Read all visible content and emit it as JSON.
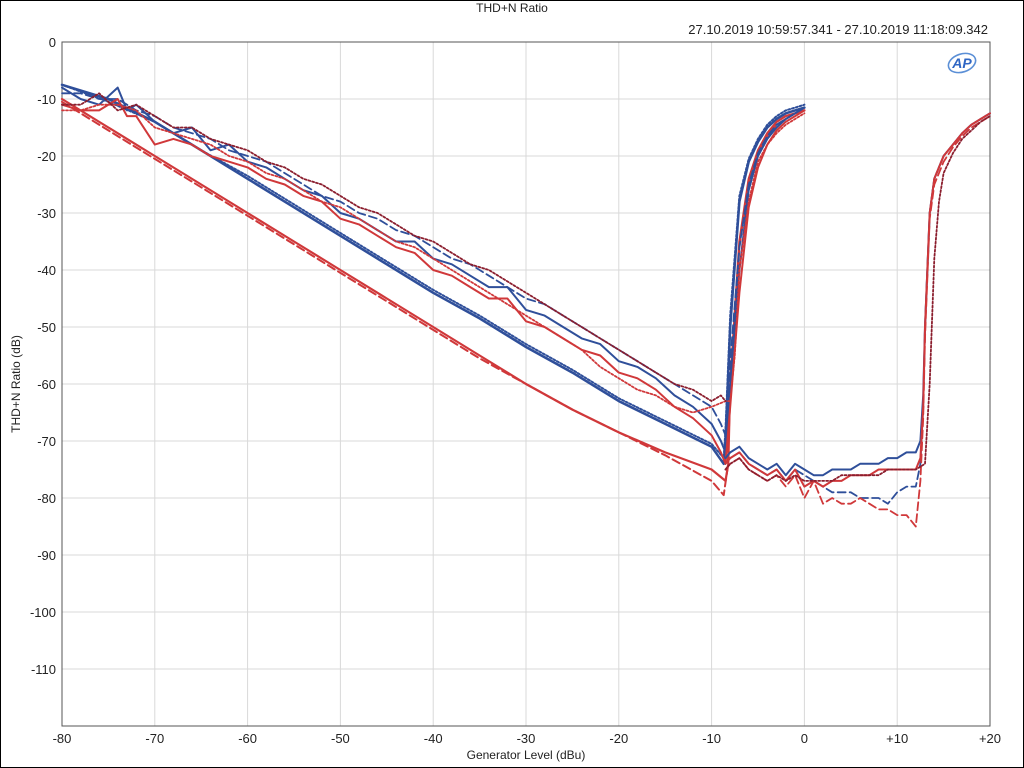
{
  "chart_data": {
    "type": "line",
    "title": "THD+N Ratio",
    "subtitle": "27.10.2019 10:59:57.341 - 27.10.2019 11:18:09.342",
    "xlabel": "Generator Level (dBu)",
    "ylabel": "THD+N Ratio (dB)",
    "xlim": [
      -80,
      20
    ],
    "ylim": [
      -120,
      0
    ],
    "xticks": [
      -80,
      -70,
      -60,
      -50,
      -40,
      -30,
      -20,
      -10,
      0,
      10,
      20
    ],
    "xtick_labels": [
      "-80",
      "-70",
      "-60",
      "-50",
      "-40",
      "-30",
      "-20",
      "-10",
      "0",
      "+10",
      "+20"
    ],
    "yticks": [
      0,
      -10,
      -20,
      -30,
      -40,
      -50,
      -60,
      -70,
      -80,
      -90,
      -100,
      -110
    ],
    "ytick_labels": [
      "0",
      "-10",
      "-20",
      "-30",
      "-40",
      "-50",
      "-60",
      "-70",
      "-80",
      "-90",
      "-100",
      "-110"
    ],
    "grid": true,
    "logo_text": "AP",
    "colors": {
      "blue": "#2f4f9a",
      "red": "#d0383a",
      "dark_red": "#8b1e2e"
    },
    "series": [
      {
        "color": "#2f4f9a",
        "style": "solid",
        "width": 2.5,
        "x": [
          -80,
          -75,
          -70,
          -65,
          -60,
          -55,
          -50,
          -45,
          -40,
          -35,
          -30,
          -25,
          -20,
          -15,
          -10,
          -8.7,
          -8.5,
          -8,
          -7,
          -6,
          -5,
          -4,
          -3,
          -2,
          -1,
          0
        ],
        "y": [
          -7.5,
          -10,
          -14,
          -19,
          -24,
          -29,
          -34,
          -39,
          -44,
          -48.5,
          -53.5,
          -58,
          -63,
          -67,
          -71,
          -74,
          -70,
          -50,
          -28,
          -21,
          -17.5,
          -15,
          -13.5,
          -12.5,
          -12,
          -11.5
        ]
      },
      {
        "color": "#2f4f9a",
        "style": "dotted",
        "width": 2,
        "x": [
          -80,
          -75,
          -70,
          -65,
          -60,
          -55,
          -50,
          -45,
          -40,
          -35,
          -30,
          -25,
          -20,
          -15,
          -10,
          -8.7,
          -8.5,
          -8,
          -7,
          -6,
          -5,
          -4,
          -3,
          -2,
          -1,
          0
        ],
        "y": [
          -7.5,
          -10.5,
          -14,
          -19,
          -23.5,
          -28.5,
          -33.5,
          -38.5,
          -43.5,
          -48,
          -53,
          -57.5,
          -62.5,
          -66.5,
          -70.5,
          -73,
          -68,
          -48,
          -27,
          -20.5,
          -17,
          -14.5,
          -13,
          -12,
          -11.5,
          -11
        ]
      },
      {
        "color": "#d0383a",
        "style": "solid",
        "width": 2.2,
        "x": [
          -80,
          -75,
          -70,
          -65,
          -60,
          -55,
          -50,
          -45,
          -40,
          -35,
          -30,
          -25,
          -20,
          -15,
          -10,
          -8.5,
          -8.2,
          -8,
          -7,
          -6,
          -5,
          -4,
          -3,
          -2,
          -1,
          0
        ],
        "y": [
          -10,
          -15,
          -20,
          -25,
          -30,
          -35,
          -40,
          -45,
          -50,
          -55,
          -60,
          -64.5,
          -68.5,
          -72,
          -75,
          -77,
          -74,
          -60,
          -35,
          -24,
          -19,
          -16,
          -14,
          -13,
          -12.5,
          -12
        ]
      },
      {
        "color": "#d0383a",
        "style": "dashed",
        "width": 2,
        "x": [
          -80,
          -75,
          -70,
          -65,
          -60,
          -55,
          -50,
          -45,
          -40,
          -35,
          -30,
          -25,
          -20,
          -15,
          -10,
          -8.7,
          -8.3,
          -8,
          -7,
          -6,
          -5,
          -4,
          -3,
          -2,
          -1,
          0
        ],
        "y": [
          -10.5,
          -15.5,
          -20.5,
          -25.5,
          -30.5,
          -35.5,
          -40.5,
          -45.5,
          -50.5,
          -55.5,
          -60,
          -64.5,
          -68.5,
          -72.5,
          -77,
          -79.5,
          -75,
          -62,
          -36,
          -25,
          -19.5,
          -16.5,
          -14.5,
          -13.5,
          -12.5,
          -12
        ]
      },
      {
        "color": "#2f4f9a",
        "style": "solid",
        "width": 2,
        "x": [
          -80,
          -78,
          -76,
          -74,
          -73,
          -72,
          -70,
          -68,
          -66,
          -64,
          -62,
          -60,
          -58,
          -56,
          -54,
          -52,
          -50,
          -48,
          -46,
          -44,
          -42,
          -40,
          -38,
          -36,
          -34,
          -32,
          -30,
          -28,
          -26,
          -24,
          -22,
          -20,
          -18,
          -16,
          -14,
          -12,
          -10,
          -9,
          -8.5,
          -8,
          -7,
          -6,
          -5,
          -4,
          -3,
          -2,
          -1,
          0
        ],
        "y": [
          -8,
          -10,
          -11,
          -8,
          -12,
          -11,
          -14,
          -16,
          -15,
          -19,
          -18,
          -21,
          -22,
          -24,
          -26,
          -27,
          -30,
          -31,
          -33,
          -35,
          -35,
          -38,
          -39,
          -41,
          -43,
          -43,
          -47,
          -48,
          -50,
          -52,
          -53,
          -56,
          -57,
          -59,
          -62,
          -64,
          -67,
          -70,
          -72,
          -60,
          -40,
          -26,
          -20,
          -17,
          -15,
          -13.5,
          -12.5,
          -11.5
        ]
      },
      {
        "color": "#2f4f9a",
        "style": "dashed",
        "width": 1.8,
        "x": [
          -80,
          -78,
          -76,
          -74,
          -73,
          -72,
          -70,
          -68,
          -66,
          -64,
          -62,
          -60,
          -58,
          -56,
          -54,
          -52,
          -50,
          -48,
          -46,
          -44,
          -42,
          -40,
          -38,
          -36,
          -34,
          -32,
          -30,
          -28,
          -26,
          -24,
          -22,
          -20,
          -18,
          -16,
          -14,
          -12,
          -10,
          -9,
          -8.5,
          -8,
          -7,
          -6,
          -5,
          -4,
          -3,
          -2,
          -1,
          0
        ],
        "y": [
          -9,
          -9,
          -10,
          -10,
          -11,
          -12,
          -13,
          -15,
          -16,
          -17,
          -19,
          -20,
          -21,
          -23,
          -25,
          -27,
          -28,
          -30,
          -31,
          -33,
          -34,
          -36,
          -38,
          -39,
          -41,
          -43,
          -45,
          -46,
          -48,
          -50,
          -52,
          -54,
          -56,
          -58,
          -60,
          -62,
          -64,
          -67,
          -69,
          -56,
          -36,
          -25,
          -19.5,
          -16.5,
          -14.5,
          -13.5,
          -12.5,
          -11.5
        ]
      },
      {
        "color": "#d0383a",
        "style": "solid",
        "width": 2,
        "x": [
          -80,
          -78,
          -76,
          -74,
          -73,
          -72,
          -70,
          -68,
          -66,
          -64,
          -62,
          -60,
          -58,
          -56,
          -54,
          -52,
          -50,
          -48,
          -46,
          -44,
          -42,
          -40,
          -38,
          -36,
          -34,
          -32,
          -30,
          -28,
          -26,
          -24,
          -22,
          -20,
          -18,
          -16,
          -14,
          -12,
          -10,
          -9,
          -8.5,
          -8,
          -7,
          -6,
          -5,
          -4,
          -3,
          -2,
          -1,
          0
        ],
        "y": [
          -11,
          -12,
          -12,
          -10,
          -13,
          -13,
          -18,
          -17,
          -18,
          -20,
          -21,
          -22,
          -24,
          -25,
          -27,
          -28,
          -31,
          -32,
          -34,
          -36,
          -37,
          -40,
          -41,
          -43,
          -45,
          -45,
          -49,
          -50,
          -52,
          -54,
          -55,
          -58,
          -59,
          -61,
          -64,
          -66,
          -69,
          -72,
          -74,
          -64,
          -44,
          -29,
          -22,
          -18,
          -15.5,
          -14,
          -13,
          -12
        ]
      },
      {
        "color": "#d0383a",
        "style": "dotted",
        "width": 1.8,
        "x": [
          -80,
          -78,
          -76,
          -74,
          -72,
          -70,
          -68,
          -66,
          -64,
          -62,
          -60,
          -58,
          -56,
          -54,
          -52,
          -50,
          -48,
          -46,
          -44,
          -42,
          -40,
          -38,
          -36,
          -34,
          -32,
          -30,
          -28,
          -26,
          -24,
          -22,
          -20,
          -18,
          -16,
          -14,
          -12,
          -10,
          -8.5,
          -8,
          -7.5,
          -7,
          -6,
          -5,
          -4,
          -3,
          -2,
          -1,
          0
        ],
        "y": [
          -12,
          -12,
          -11,
          -11,
          -12,
          -15,
          -16,
          -17,
          -18,
          -20,
          -21,
          -23,
          -24,
          -26,
          -28,
          -29,
          -31,
          -33,
          -35,
          -36,
          -38,
          -40,
          -42,
          -44,
          -46,
          -48,
          -50,
          -52,
          -54,
          -57,
          -59,
          -61,
          -62,
          -64,
          -65,
          -64,
          -63,
          -63,
          -55,
          -40,
          -28,
          -21,
          -18,
          -16,
          -14.5,
          -13.5,
          -12.5
        ]
      },
      {
        "color": "#8b1e2e",
        "style": "dotted",
        "width": 1.8,
        "x": [
          -80,
          -78,
          -76,
          -74,
          -72,
          -70,
          -68,
          -66,
          -64,
          -62,
          -60,
          -58,
          -56,
          -54,
          -52,
          -50,
          -48,
          -46,
          -44,
          -42,
          -40,
          -38,
          -36,
          -34,
          -32,
          -30,
          -28,
          -26,
          -24,
          -22,
          -20,
          -18,
          -16,
          -14,
          -12,
          -10,
          -9,
          -8.5
        ],
        "y": [
          -11,
          -11,
          -9,
          -12,
          -11,
          -13,
          -15,
          -15,
          -17,
          -18,
          -19,
          -21,
          -22,
          -24,
          -25,
          -27,
          -29,
          -30,
          -32,
          -34,
          -35,
          -37,
          -39,
          -40,
          -42,
          -44,
          -46,
          -48,
          -50,
          -52,
          -54,
          -56,
          -58,
          -60,
          -61,
          -63,
          -62,
          -63
        ]
      },
      {
        "color": "#2f4f9a",
        "style": "solid",
        "width": 2,
        "x": [
          -8.5,
          -8,
          -7,
          -6,
          -5,
          -4,
          -3,
          -2,
          -1,
          0,
          1,
          2,
          3,
          4,
          5,
          6,
          7,
          8,
          9,
          10,
          11,
          12,
          12.5,
          12.8,
          13,
          13.5,
          14,
          15,
          16,
          17,
          18,
          19,
          20
        ],
        "y": [
          -73,
          -72,
          -71,
          -73,
          -74,
          -75,
          -74,
          -76,
          -74,
          -75,
          -76,
          -76,
          -75,
          -75,
          -75,
          -74,
          -74,
          -74,
          -73,
          -73,
          -72,
          -72,
          -70,
          -62,
          -50,
          -30,
          -24,
          -20,
          -18,
          -16,
          -14.5,
          -13.5,
          -12.5
        ]
      },
      {
        "color": "#2f4f9a",
        "style": "dashed",
        "width": 1.8,
        "x": [
          -8.5,
          -8,
          -7,
          -6,
          -5,
          -4,
          -3,
          -2,
          -1,
          0,
          1,
          2,
          3,
          4,
          5,
          6,
          7,
          8,
          9,
          10,
          11,
          12,
          12.5,
          12.8,
          13,
          13.5,
          14,
          15,
          16,
          17,
          18,
          19,
          20
        ],
        "y": [
          -74,
          -73,
          -72,
          -74,
          -75,
          -76,
          -75,
          -77,
          -75,
          -76,
          -77,
          -78,
          -79,
          -79,
          -79,
          -80,
          -80,
          -80,
          -81,
          -79,
          -78,
          -78,
          -74,
          -64,
          -50,
          -30,
          -24,
          -20,
          -18,
          -16,
          -14.5,
          -13.5,
          -12.5
        ]
      },
      {
        "color": "#d0383a",
        "style": "dashed",
        "width": 1.8,
        "x": [
          -8.5,
          -8,
          -7,
          -6,
          -5,
          -4,
          -3,
          -2,
          -1,
          0,
          1,
          2,
          3,
          4,
          5,
          6,
          7,
          8,
          9,
          10,
          11,
          12,
          12.5,
          12.8,
          13,
          13.5,
          14,
          15,
          16,
          17,
          18,
          19,
          20
        ],
        "y": [
          -75,
          -74,
          -73,
          -75,
          -76,
          -77,
          -76,
          -78,
          -76,
          -80,
          -77,
          -81,
          -80,
          -81,
          -81,
          -80,
          -81,
          -82,
          -82,
          -83,
          -83,
          -85,
          -77,
          -66,
          -52,
          -31,
          -25,
          -21,
          -18.5,
          -16.5,
          -15,
          -14,
          -13
        ]
      },
      {
        "color": "#d0383a",
        "style": "solid",
        "width": 2,
        "x": [
          -8.5,
          -8,
          -7,
          -6,
          -5,
          -4,
          -3,
          -2,
          -1,
          0,
          1,
          2,
          3,
          4,
          5,
          6,
          7,
          8,
          9,
          10,
          11,
          12,
          12.5,
          12.8,
          13,
          13.5,
          14,
          15,
          16,
          17,
          18,
          19,
          20
        ],
        "y": [
          -74,
          -73,
          -72,
          -74,
          -75,
          -76,
          -75,
          -77,
          -75,
          -78,
          -77,
          -78,
          -77,
          -77,
          -76,
          -76,
          -76,
          -75,
          -75,
          -75,
          -75,
          -75,
          -73,
          -64,
          -50,
          -30,
          -24,
          -20,
          -18,
          -16,
          -14.5,
          -13.5,
          -12.5
        ]
      },
      {
        "color": "#8b1e2e",
        "style": "dotted",
        "width": 1.8,
        "x": [
          -8.5,
          -8,
          -7,
          -6,
          -5,
          -4,
          -3,
          -2,
          -1,
          0,
          1,
          2,
          3,
          4,
          5,
          6,
          7,
          8,
          9,
          10,
          11,
          12,
          13,
          13.5,
          14,
          14.5,
          15,
          16,
          17,
          18,
          19,
          20
        ],
        "y": [
          -75,
          -74,
          -73,
          -75,
          -76,
          -77,
          -76,
          -77,
          -76,
          -77,
          -77,
          -77,
          -77,
          -76,
          -76,
          -76,
          -76,
          -76,
          -75,
          -75,
          -75,
          -75,
          -74,
          -60,
          -38,
          -28,
          -23,
          -19.5,
          -17,
          -15.5,
          -14,
          -13
        ]
      }
    ]
  }
}
